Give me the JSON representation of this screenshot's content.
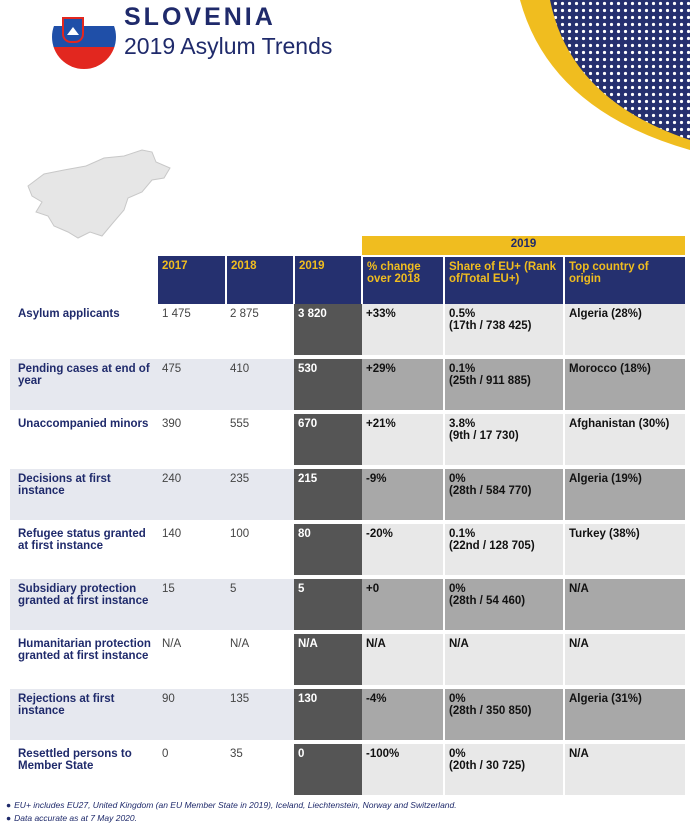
{
  "header": {
    "country": "SLOVENIA",
    "subtitle": "2019 Asylum Trends"
  },
  "colors": {
    "navy": "#25306f",
    "gold": "#f0bd1f",
    "dark_gray": "#555555",
    "mid_gray": "#a8a8a8",
    "light_gray": "#e8e8e8"
  },
  "icons": [
    "slovenia-flag-icon",
    "slovenia-map-icon",
    "dot-pattern-decoration"
  ],
  "table": {
    "group_header": "2019",
    "columns": [
      "2017",
      "2018",
      "2019",
      "% change over 2018",
      "Share of EU+ (Rank of/Total EU+)",
      "Top country of origin"
    ],
    "rows": [
      {
        "label": "Asylum applicants",
        "y2017": "1 475",
        "y2018": "2 875",
        "y2019": "3 820",
        "change": "+33%",
        "share": "0.5%",
        "rank": "(17th / 738 425)",
        "top": "Algeria (28%)"
      },
      {
        "label": "Pending cases at end of year",
        "y2017": "475",
        "y2018": "410",
        "y2019": "530",
        "change": "+29%",
        "share": "0.1%",
        "rank": "(25th / 911 885)",
        "top": "Morocco (18%)"
      },
      {
        "label": "Unaccompanied minors",
        "y2017": "390",
        "y2018": "555",
        "y2019": "670",
        "change": "+21%",
        "share": "3.8%",
        "rank": "(9th / 17 730)",
        "top": "Afghanistan (30%)"
      },
      {
        "label": "Decisions at first instance",
        "y2017": "240",
        "y2018": "235",
        "y2019": "215",
        "change": "-9%",
        "share": "0%",
        "rank": "(28th / 584 770)",
        "top": "Algeria (19%)"
      },
      {
        "label": "Refugee status granted at first instance",
        "y2017": "140",
        "y2018": "100",
        "y2019": "80",
        "change": "-20%",
        "share": "0.1%",
        "rank": "(22nd / 128 705)",
        "top": "Turkey (38%)"
      },
      {
        "label": "Subsidiary protection granted at first instance",
        "y2017": "15",
        "y2018": "5",
        "y2019": "5",
        "change": "+0",
        "share": "0%",
        "rank": "(28th / 54 460)",
        "top": "N/A"
      },
      {
        "label": "Humanitarian protection granted at first instance",
        "y2017": "N/A",
        "y2018": "N/A",
        "y2019": "N/A",
        "change": "N/A",
        "share": "N/A",
        "rank": "",
        "top": "N/A"
      },
      {
        "label": "Rejections at first instance",
        "y2017": "90",
        "y2018": "135",
        "y2019": "130",
        "change": "-4%",
        "share": "0%",
        "rank": "(28th / 350 850)",
        "top": "Algeria (31%)"
      },
      {
        "label": "Resettled persons to Member State",
        "y2017": "0",
        "y2018": "35",
        "y2019": "0",
        "change": "-100%",
        "share": "0%",
        "rank": "(20th / 30 725)",
        "top": "N/A"
      }
    ]
  },
  "notes": [
    "EU+ includes EU27, United Kingdom (an EU Member State in 2019), Iceland, Liechtenstein, Norway and Switzerland.",
    "Data accurate as at 7 May 2020."
  ]
}
